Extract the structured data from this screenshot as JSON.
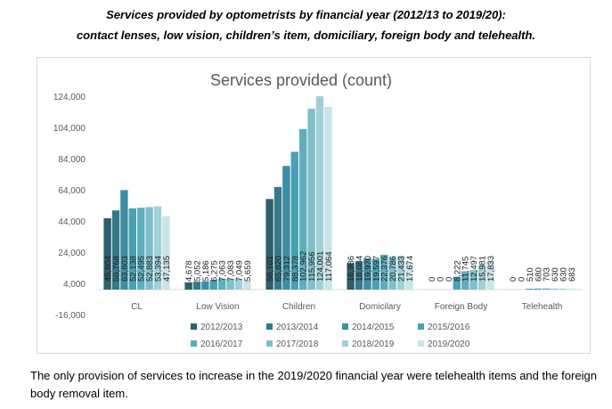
{
  "heading": {
    "line1": "Services provided by optometrists by financial year (2012/13 to 2019/20):",
    "line2": "contact lenses, low vision, children’s item, domiciliary, foreign body and telehealth."
  },
  "caption": "The only provision of services to increase in the 2019/2020 financial year were telehealth items and the foreign body removal item.",
  "chart_data": {
    "type": "bar",
    "title": "Services provided (count)",
    "categories": [
      "CL",
      "Low Vision",
      "Children",
      "Domicilary",
      "Foreign Body",
      "Telehealth"
    ],
    "y_ticks": [
      "124,000",
      "104,000",
      "84,000",
      "64,000",
      "44,000",
      "24,000",
      "4,000",
      "-16,000"
    ],
    "ylim": [
      -16000,
      124000
    ],
    "grid": false,
    "legend_position": "bottom",
    "series": [
      {
        "name": "2012/2013",
        "color": "#2e5f6e",
        "values": [
          45804,
          4678,
          58101,
          16986,
          0,
          0
        ],
        "labels": [
          "45,804",
          "4,678",
          "58,101",
          "16,986",
          "0",
          "0"
        ]
      },
      {
        "name": "2013/2014",
        "color": "#36788a",
        "values": [
          50768,
          5052,
          65820,
          18084,
          0,
          0
        ],
        "labels": [
          "50,768",
          "5,052",
          "65,820",
          "18,084",
          "0",
          "0"
        ]
      },
      {
        "name": "2014/2015",
        "color": "#3e8ea3",
        "values": [
          63803,
          5186,
          79312,
          19970,
          0,
          510
        ],
        "labels": [
          "63,803",
          "5,186",
          "79,312",
          "19,970",
          "0",
          "510"
        ]
      },
      {
        "name": "2015/2016",
        "color": "#4aa1b3",
        "values": [
          52138,
          6275,
          88378,
          19597,
          8222,
          680
        ],
        "labels": [
          "52,138",
          "6,275",
          "88,378",
          "19,597",
          "8,222",
          "680"
        ]
      },
      {
        "name": "2016/2017",
        "color": "#5eaebd",
        "values": [
          52495,
          7063,
          102962,
          22376,
          11745,
          703
        ],
        "labels": [
          "52,495",
          "7,063",
          "102,962",
          "22,376",
          "11,745",
          "703"
        ]
      },
      {
        "name": "2017/2018",
        "color": "#7fbfca",
        "values": [
          52883,
          7083,
          115956,
          20786,
          12497,
          630
        ],
        "labels": [
          "52,883",
          "7,083",
          "115,956",
          "20,786",
          "12,497",
          "630"
        ]
      },
      {
        "name": "2018/2019",
        "color": "#a1d0d8",
        "values": [
          53394,
          7049,
          124001,
          21433,
          15981,
          630
        ],
        "labels": [
          "53,394",
          "7,049",
          "124,001",
          "21,433",
          "15,981",
          "630"
        ]
      },
      {
        "name": "2019/2020",
        "color": "#c9e3e8",
        "values": [
          47135,
          5659,
          117064,
          17674,
          17833,
          683
        ],
        "labels": [
          "47,135",
          "5,659",
          "117,064",
          "17,674",
          "17,833",
          "683"
        ]
      }
    ]
  }
}
